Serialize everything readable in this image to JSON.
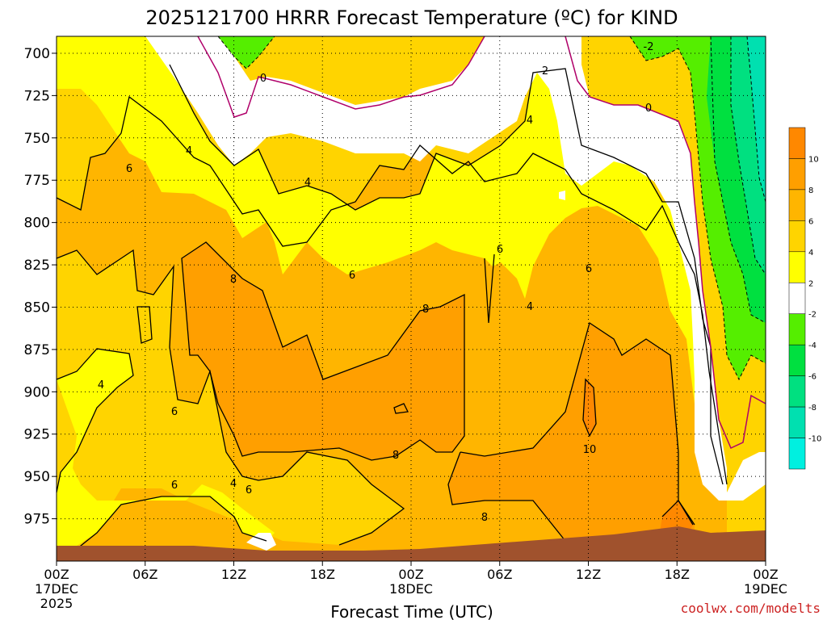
{
  "title": "2025121700 HRRR Forecast Temperature (ºC) for KIND",
  "credit": "coolwx.com/modelts",
  "chart_data": {
    "type": "heatmap",
    "title": "2025121700 HRRR Forecast Temperature (ºC) for KIND",
    "xlabel": "Forecast Time (UTC)",
    "ylabel": "",
    "x_ticks": [
      {
        "hour": 0,
        "label": "00Z",
        "line2": "17DEC",
        "line3": "2025"
      },
      {
        "hour": 6,
        "label": "06Z",
        "line2": "",
        "line3": ""
      },
      {
        "hour": 12,
        "label": "12Z",
        "line2": "",
        "line3": ""
      },
      {
        "hour": 18,
        "label": "18Z",
        "line2": "",
        "line3": ""
      },
      {
        "hour": 24,
        "label": "00Z",
        "line2": "18DEC",
        "line3": ""
      },
      {
        "hour": 30,
        "label": "06Z",
        "line2": "",
        "line3": ""
      },
      {
        "hour": 36,
        "label": "12Z",
        "line2": "",
        "line3": ""
      },
      {
        "hour": 42,
        "label": "18Z",
        "line2": "",
        "line3": ""
      },
      {
        "hour": 48,
        "label": "00Z",
        "line2": "19DEC",
        "line3": ""
      }
    ],
    "y_ticks": [
      700,
      725,
      750,
      775,
      800,
      825,
      850,
      875,
      900,
      925,
      950,
      975
    ],
    "xlim": [
      0,
      48
    ],
    "ylim": [
      690,
      1000
    ],
    "grid": true,
    "colorbar": {
      "labels": [
        "10",
        "8",
        "6",
        "4",
        "2",
        "-2",
        "-4",
        "-6",
        "-8",
        "-10"
      ],
      "bins": [
        {
          "min": 10,
          "max": 12,
          "color": "#ff8800"
        },
        {
          "min": 8,
          "max": 10,
          "color": "#ff9f00"
        },
        {
          "min": 6,
          "max": 8,
          "color": "#ffb500"
        },
        {
          "min": 4,
          "max": 6,
          "color": "#ffd400"
        },
        {
          "min": 2,
          "max": 4,
          "color": "#ffff00"
        },
        {
          "min": -2,
          "max": 2,
          "color": "#ffffff"
        },
        {
          "min": -4,
          "max": -2,
          "color": "#55ee00"
        },
        {
          "min": -6,
          "max": -4,
          "color": "#00e040"
        },
        {
          "min": -8,
          "max": -6,
          "color": "#00e080"
        },
        {
          "min": -10,
          "max": -8,
          "color": "#00e0b0"
        },
        {
          "min": -12,
          "max": -10,
          "color": "#00f0e0"
        }
      ]
    },
    "ground_color": "#a0522d",
    "contour_labels": [
      "0",
      "0",
      "-2",
      "2",
      "4",
      "4",
      "4",
      "4",
      "4",
      "4",
      "6",
      "6",
      "6",
      "6",
      "6",
      "6",
      "6",
      "8",
      "8",
      "8",
      "8",
      "10"
    ]
  }
}
